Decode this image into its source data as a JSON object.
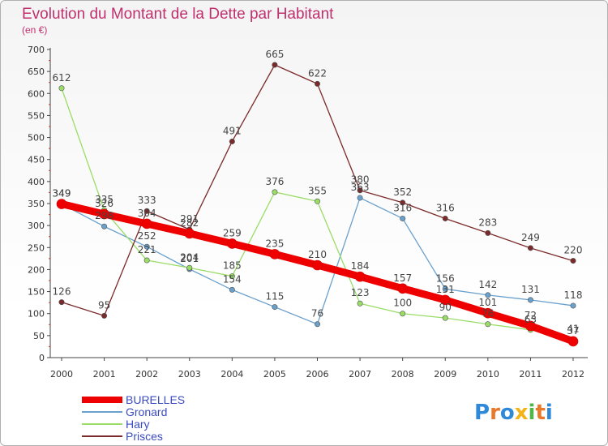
{
  "chart_data": {
    "type": "line",
    "title": "Evolution du Montant de la Dette par Habitant",
    "subtitle": "(en €)",
    "x": [
      "2000",
      "2001",
      "2002",
      "2003",
      "2004",
      "2005",
      "2006",
      "2007",
      "2008",
      "2009",
      "2010",
      "2011",
      "2012"
    ],
    "ylim": [
      0,
      700
    ],
    "yticks": [
      0,
      50,
      100,
      150,
      200,
      250,
      300,
      350,
      400,
      450,
      500,
      550,
      600,
      650,
      700
    ],
    "grid": false,
    "legend_position": "bottom-left",
    "series": [
      {
        "name": "BURELLES",
        "color": "#ee0000",
        "width": 9,
        "values": [
          349,
          326,
          304,
          282,
          259,
          235,
          210,
          184,
          157,
          131,
          101,
          72,
          37
        ]
      },
      {
        "name": "Gronard",
        "color": "#6aa0cc",
        "width": 1.3,
        "values": [
          349,
          298,
          252,
          201,
          154,
          115,
          76,
          363,
          316,
          156,
          142,
          131,
          118
        ]
      },
      {
        "name": "Hary",
        "color": "#99dd66",
        "width": 1.3,
        "values": [
          612,
          335,
          221,
          204,
          185,
          376,
          355,
          123,
          100,
          90,
          76,
          63,
          41
        ]
      },
      {
        "name": "Prisces",
        "color": "#7a2a2a",
        "width": 1.3,
        "values": [
          126,
          95,
          333,
          291,
          491,
          665,
          622,
          380,
          352,
          316,
          283,
          249,
          220
        ]
      }
    ]
  },
  "logo": {
    "text": "Proxiti"
  }
}
